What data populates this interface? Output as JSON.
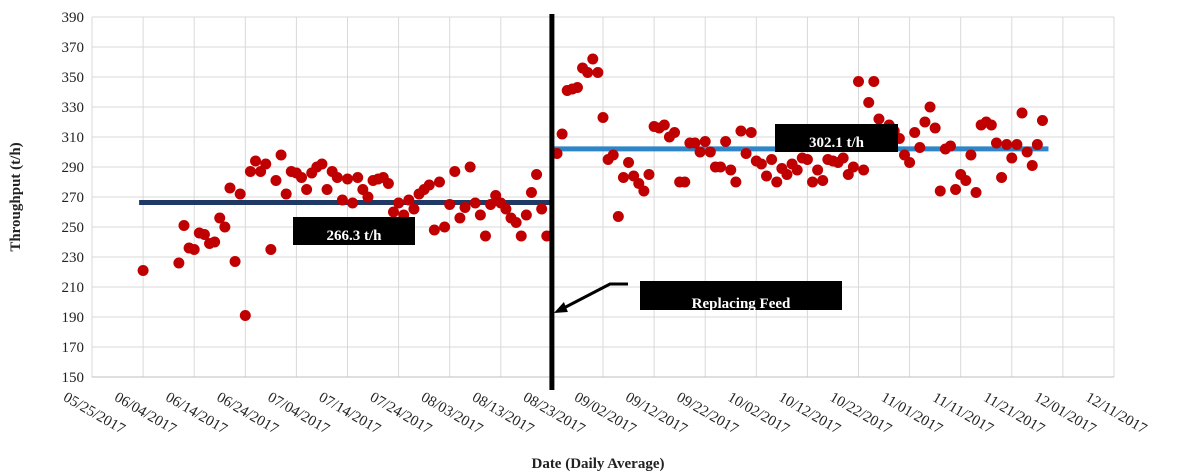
{
  "chart_data": {
    "type": "scatter",
    "y_label": "Throughput (t/h)",
    "x_label": "Date (Daily Average)",
    "color": "#c00000",
    "grid": true,
    "ylim": [
      150,
      390
    ],
    "yticks": [
      150,
      170,
      190,
      210,
      230,
      250,
      270,
      290,
      310,
      330,
      350,
      370,
      390
    ],
    "xlim": [
      "05/25/2017",
      "12/11/2017"
    ],
    "xticks": [
      "05/25/2017",
      "06/04/2017",
      "06/14/2017",
      "06/24/2017",
      "07/04/2017",
      "07/14/2017",
      "07/24/2017",
      "08/03/2017",
      "08/13/2017",
      "08/23/2017",
      "09/02/2017",
      "09/12/2017",
      "09/22/2017",
      "10/02/2017",
      "10/12/2017",
      "10/22/2017",
      "11/01/2017",
      "11/11/2017",
      "11/21/2017",
      "12/01/2017",
      "12/11/2017"
    ],
    "x": [
      "06/04/2017",
      "06/11/2017",
      "06/12/2017",
      "06/13/2017",
      "06/14/2017",
      "06/15/2017",
      "06/16/2017",
      "06/17/2017",
      "06/18/2017",
      "06/19/2017",
      "06/20/2017",
      "06/21/2017",
      "06/22/2017",
      "06/23/2017",
      "06/24/2017",
      "06/25/2017",
      "06/26/2017",
      "06/27/2017",
      "06/28/2017",
      "06/29/2017",
      "06/30/2017",
      "07/01/2017",
      "07/02/2017",
      "07/03/2017",
      "07/04/2017",
      "07/05/2017",
      "07/06/2017",
      "07/07/2017",
      "07/08/2017",
      "07/09/2017",
      "07/10/2017",
      "07/11/2017",
      "07/12/2017",
      "07/13/2017",
      "07/14/2017",
      "07/15/2017",
      "07/16/2017",
      "07/17/2017",
      "07/18/2017",
      "07/19/2017",
      "07/20/2017",
      "07/21/2017",
      "07/22/2017",
      "07/23/2017",
      "07/24/2017",
      "07/25/2017",
      "07/26/2017",
      "07/27/2017",
      "07/28/2017",
      "07/29/2017",
      "07/30/2017",
      "07/31/2017",
      "08/01/2017",
      "08/02/2017",
      "08/03/2017",
      "08/04/2017",
      "08/05/2017",
      "08/06/2017",
      "08/07/2017",
      "08/08/2017",
      "08/09/2017",
      "08/10/2017",
      "08/11/2017",
      "08/12/2017",
      "08/13/2017",
      "08/14/2017",
      "08/15/2017",
      "08/16/2017",
      "08/17/2017",
      "08/18/2017",
      "08/19/2017",
      "08/20/2017",
      "08/21/2017",
      "08/22/2017",
      "08/24/2017",
      "08/25/2017",
      "08/26/2017",
      "08/27/2017",
      "08/28/2017",
      "08/29/2017",
      "08/30/2017",
      "08/31/2017",
      "09/01/2017",
      "09/02/2017",
      "09/03/2017",
      "09/04/2017",
      "09/05/2017",
      "09/06/2017",
      "09/07/2017",
      "09/08/2017",
      "09/09/2017",
      "09/10/2017",
      "09/11/2017",
      "09/12/2017",
      "09/13/2017",
      "09/14/2017",
      "09/15/2017",
      "09/16/2017",
      "09/17/2017",
      "09/18/2017",
      "09/19/2017",
      "09/20/2017",
      "09/21/2017",
      "09/22/2017",
      "09/23/2017",
      "09/24/2017",
      "09/25/2017",
      "09/26/2017",
      "09/27/2017",
      "09/28/2017",
      "09/29/2017",
      "09/30/2017",
      "10/01/2017",
      "10/02/2017",
      "10/03/2017",
      "10/04/2017",
      "10/05/2017",
      "10/06/2017",
      "10/07/2017",
      "10/08/2017",
      "10/09/2017",
      "10/10/2017",
      "10/11/2017",
      "10/12/2017",
      "10/13/2017",
      "10/14/2017",
      "10/15/2017",
      "10/16/2017",
      "10/17/2017",
      "10/18/2017",
      "10/19/2017",
      "10/20/2017",
      "10/21/2017",
      "10/22/2017",
      "10/23/2017",
      "10/24/2017",
      "10/25/2017",
      "10/26/2017",
      "10/27/2017",
      "10/28/2017",
      "10/29/2017",
      "10/30/2017",
      "10/31/2017",
      "11/01/2017",
      "11/02/2017",
      "11/03/2017",
      "11/04/2017",
      "11/05/2017",
      "11/06/2017",
      "11/07/2017",
      "11/08/2017",
      "11/09/2017",
      "11/10/2017",
      "11/11/2017",
      "11/12/2017",
      "11/13/2017",
      "11/14/2017",
      "11/15/2017",
      "11/16/2017",
      "11/17/2017",
      "11/18/2017",
      "11/19/2017",
      "11/20/2017",
      "11/21/2017",
      "11/22/2017",
      "11/23/2017",
      "11/24/2017",
      "11/25/2017",
      "11/26/2017",
      "11/27/2017"
    ],
    "values": [
      221,
      226,
      251,
      236,
      235,
      246,
      245,
      239,
      240,
      256,
      250,
      276,
      227,
      272,
      191,
      287,
      294,
      287,
      292,
      235,
      281,
      298,
      272,
      287,
      286,
      283,
      275,
      286,
      290,
      292,
      275,
      287,
      283,
      268,
      282,
      266,
      283,
      275,
      270,
      281,
      282,
      283,
      279,
      260,
      266,
      258,
      268,
      262,
      272,
      275,
      278,
      248,
      280,
      250,
      265,
      287,
      256,
      263,
      290,
      266,
      258,
      244,
      265,
      271,
      266,
      262,
      256,
      253,
      244,
      258,
      273,
      285,
      262,
      244,
      299,
      312,
      341,
      342,
      343,
      356,
      353,
      362,
      353,
      323,
      295,
      298,
      257,
      283,
      293,
      284,
      279,
      274,
      285,
      317,
      316,
      318,
      310,
      313,
      280,
      280,
      306,
      306,
      300,
      307,
      300,
      290,
      290,
      307,
      288,
      280,
      314,
      299,
      313,
      294,
      292,
      284,
      295,
      280,
      289,
      285,
      292,
      288,
      296,
      295,
      280,
      288,
      281,
      295,
      294,
      293,
      296,
      285,
      290,
      347,
      288,
      333,
      347,
      322,
      311,
      318,
      314,
      309,
      298,
      293,
      313,
      303,
      320,
      330,
      316,
      274,
      302,
      304,
      275,
      285,
      281,
      298,
      273,
      318,
      320,
      318,
      306,
      283,
      305,
      296,
      305,
      326,
      300,
      291,
      305,
      321
    ],
    "event": {
      "x": "08/23/2017",
      "label": "Replacing Feed"
    },
    "reference_lines": [
      {
        "value": 266.3,
        "label": "266.3 t/h",
        "color": "#1f3864"
      },
      {
        "value": 302.1,
        "label": "302.1 t/h",
        "color": "#2e86c8"
      }
    ]
  }
}
